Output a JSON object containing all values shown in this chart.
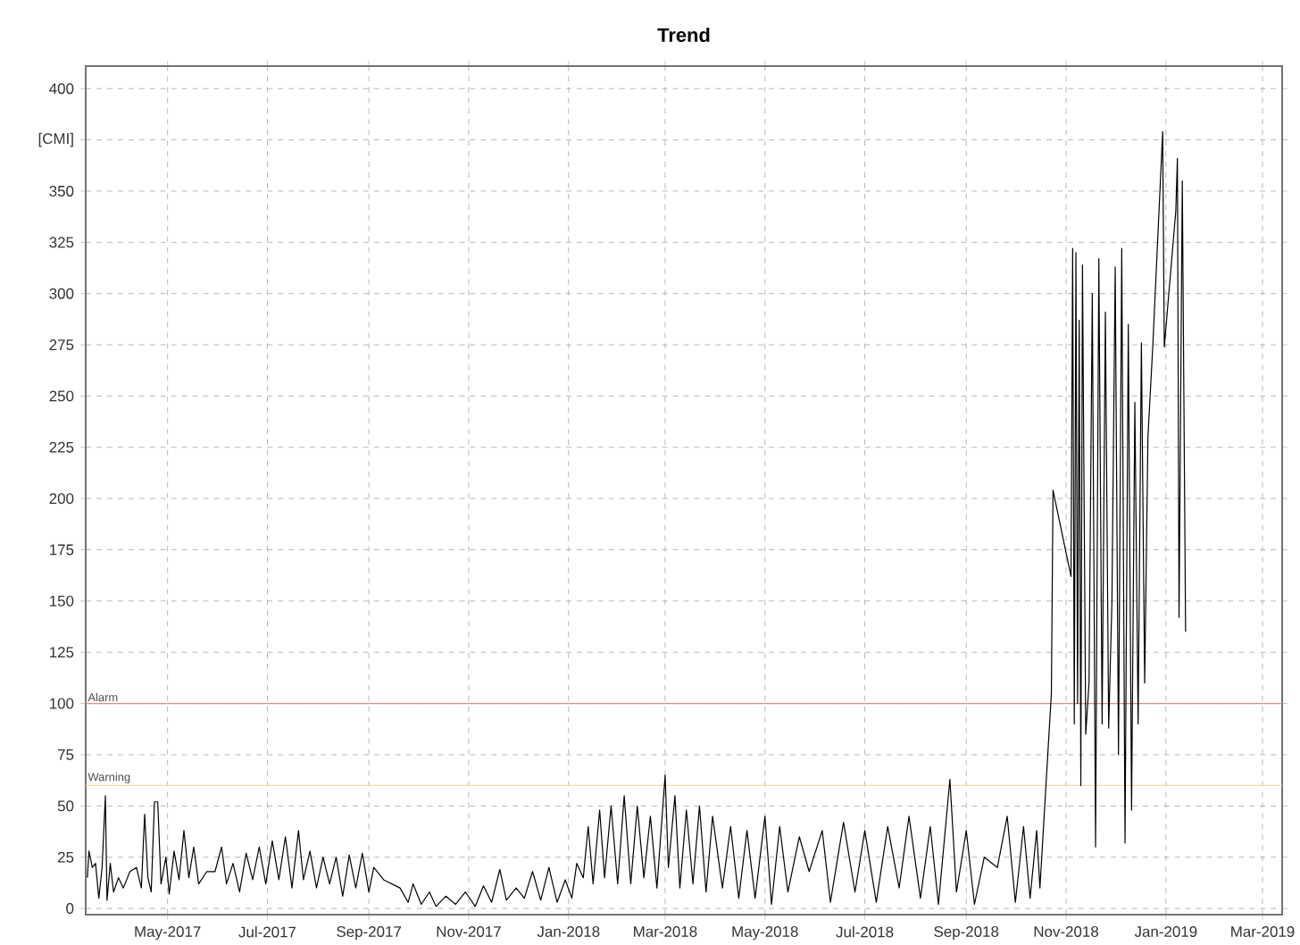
{
  "chart_data": {
    "type": "line",
    "title": "Trend",
    "xlim": [
      "2017-03-12",
      "2019-03-13"
    ],
    "xticks": [
      {
        "value": "2017-05-01",
        "label": "May-2017"
      },
      {
        "value": "2017-07-01",
        "label": "Jul-2017"
      },
      {
        "value": "2017-09-01",
        "label": "Sep-2017"
      },
      {
        "value": "2017-11-01",
        "label": "Nov-2017"
      },
      {
        "value": "2018-01-01",
        "label": "Jan-2018"
      },
      {
        "value": "2018-03-01",
        "label": "Mar-2018"
      },
      {
        "value": "2018-05-01",
        "label": "May-2018"
      },
      {
        "value": "2018-07-01",
        "label": "Jul-2018"
      },
      {
        "value": "2018-09-01",
        "label": "Sep-2018"
      },
      {
        "value": "2018-11-01",
        "label": "Nov-2018"
      },
      {
        "value": "2019-01-01",
        "label": "Jan-2019"
      },
      {
        "value": "2019-03-01",
        "label": "Mar-2019"
      }
    ],
    "ylim": [
      -3,
      411
    ],
    "yticks": [
      0,
      25,
      50,
      75,
      100,
      125,
      150,
      175,
      200,
      225,
      250,
      275,
      300,
      325,
      350,
      {
        "value": 375,
        "label": "[CMI]"
      },
      400
    ],
    "grid": true,
    "ref_lines": [
      {
        "axis": "y",
        "value": 100,
        "label": "Alarm",
        "color": "#e88a8a"
      },
      {
        "axis": "y",
        "value": 60,
        "label": "Warning",
        "color": "#f2dfa0"
      }
    ],
    "series": [
      {
        "color": "#000000",
        "x": [
          "2017-03-13",
          "2017-03-14",
          "2017-03-16",
          "2017-03-18",
          "2017-03-20",
          "2017-03-22",
          "2017-03-24",
          "2017-03-25",
          "2017-03-27",
          "2017-03-29",
          "2017-04-01",
          "2017-04-04",
          "2017-04-08",
          "2017-04-12",
          "2017-04-15",
          "2017-04-17",
          "2017-04-19",
          "2017-04-21",
          "2017-04-23",
          "2017-04-25",
          "2017-04-27",
          "2017-04-30",
          "2017-05-02",
          "2017-05-05",
          "2017-05-08",
          "2017-05-11",
          "2017-05-14",
          "2017-05-17",
          "2017-05-20",
          "2017-05-25",
          "2017-05-30",
          "2017-06-03",
          "2017-06-06",
          "2017-06-10",
          "2017-06-14",
          "2017-06-18",
          "2017-06-22",
          "2017-06-26",
          "2017-06-30",
          "2017-07-04",
          "2017-07-08",
          "2017-07-12",
          "2017-07-16",
          "2017-07-20",
          "2017-07-23",
          "2017-07-27",
          "2017-07-31",
          "2017-08-04",
          "2017-08-08",
          "2017-08-12",
          "2017-08-16",
          "2017-08-20",
          "2017-08-24",
          "2017-08-28",
          "2017-09-01",
          "2017-09-04",
          "2017-09-10",
          "2017-09-20",
          "2017-09-25",
          "2017-09-28",
          "2017-10-03",
          "2017-10-08",
          "2017-10-12",
          "2017-10-18",
          "2017-10-24",
          "2017-10-30",
          "2017-11-05",
          "2017-11-10",
          "2017-11-15",
          "2017-11-20",
          "2017-11-24",
          "2017-11-30",
          "2017-12-05",
          "2017-12-10",
          "2017-12-15",
          "2017-12-20",
          "2017-12-25",
          "2017-12-30",
          "2018-01-03",
          "2018-01-06",
          "2018-01-10",
          "2018-01-13",
          "2018-01-16",
          "2018-01-20",
          "2018-01-23",
          "2018-01-27",
          "2018-01-31",
          "2018-02-04",
          "2018-02-08",
          "2018-02-12",
          "2018-02-16",
          "2018-02-20",
          "2018-02-24",
          "2018-03-01",
          "2018-03-03",
          "2018-03-07",
          "2018-03-10",
          "2018-03-14",
          "2018-03-18",
          "2018-03-22",
          "2018-03-26",
          "2018-03-30",
          "2018-04-05",
          "2018-04-10",
          "2018-04-15",
          "2018-04-20",
          "2018-04-25",
          "2018-05-01",
          "2018-05-05",
          "2018-05-10",
          "2018-05-15",
          "2018-05-22",
          "2018-05-28",
          "2018-06-05",
          "2018-06-10",
          "2018-06-18",
          "2018-06-25",
          "2018-07-01",
          "2018-07-08",
          "2018-07-15",
          "2018-07-22",
          "2018-07-28",
          "2018-08-04",
          "2018-08-10",
          "2018-08-15",
          "2018-08-22",
          "2018-08-26",
          "2018-09-01",
          "2018-09-06",
          "2018-09-12",
          "2018-09-20",
          "2018-09-26",
          "2018-10-01",
          "2018-10-06",
          "2018-10-10",
          "2018-10-14",
          "2018-10-16",
          "2018-10-23",
          "2018-10-24",
          "2018-11-04",
          "2018-11-05",
          "2018-11-06",
          "2018-11-07",
          "2018-11-08",
          "2018-11-09",
          "2018-11-10",
          "2018-11-11",
          "2018-11-13",
          "2018-11-15",
          "2018-11-17",
          "2018-11-19",
          "2018-11-21",
          "2018-11-23",
          "2018-11-25",
          "2018-11-27",
          "2018-11-29",
          "2018-12-01",
          "2018-12-03",
          "2018-12-05",
          "2018-12-07",
          "2018-12-09",
          "2018-12-11",
          "2018-12-13",
          "2018-12-15",
          "2018-12-17",
          "2018-12-19",
          "2018-12-21",
          "2018-12-24",
          "2018-12-30",
          "2018-12-31",
          "2019-01-07",
          "2019-01-08",
          "2019-01-09",
          "2019-01-11",
          "2019-01-13"
        ],
        "values": [
          15,
          28,
          20,
          22,
          5,
          20,
          55,
          4,
          22,
          8,
          15,
          10,
          18,
          20,
          10,
          46,
          15,
          8,
          52,
          52,
          12,
          25,
          7,
          28,
          14,
          38,
          15,
          30,
          12,
          18,
          18,
          30,
          12,
          22,
          8,
          27,
          14,
          30,
          12,
          33,
          14,
          35,
          10,
          38,
          14,
          28,
          10,
          25,
          12,
          25,
          6,
          26,
          10,
          27,
          8,
          20,
          14,
          10,
          3,
          12,
          2,
          8,
          1,
          6,
          2,
          8,
          1,
          11,
          3,
          19,
          4,
          10,
          5,
          18,
          4,
          20,
          3,
          14,
          5,
          22,
          15,
          40,
          12,
          48,
          15,
          50,
          12,
          55,
          12,
          50,
          15,
          45,
          10,
          65,
          20,
          55,
          10,
          48,
          12,
          50,
          8,
          45,
          10,
          40,
          5,
          38,
          5,
          45,
          2,
          40,
          8,
          35,
          18,
          38,
          3,
          42,
          8,
          38,
          3,
          40,
          10,
          45,
          5,
          40,
          2,
          63,
          8,
          38,
          2,
          25,
          20,
          45,
          3,
          40,
          5,
          38,
          10,
          105,
          204,
          162,
          322,
          90,
          320,
          100,
          287,
          60,
          314,
          85,
          110,
          300,
          30,
          317,
          90,
          291,
          88,
          150,
          313,
          75,
          322,
          32,
          285,
          48,
          247,
          90,
          276,
          110,
          230,
          275,
          379,
          274,
          340,
          366,
          142,
          355,
          135
        ]
      }
    ]
  }
}
